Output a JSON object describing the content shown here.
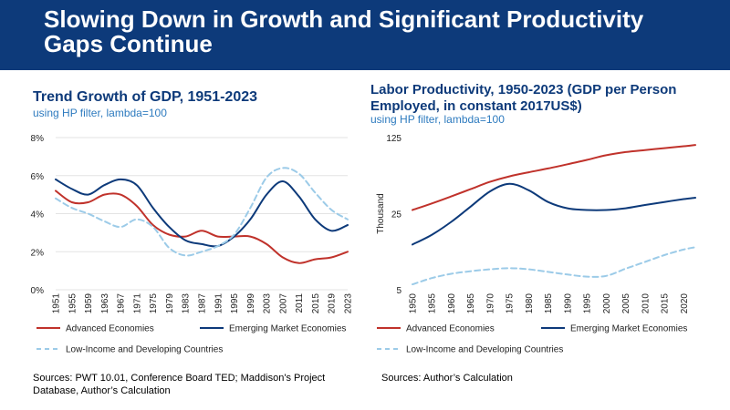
{
  "slide": {
    "title": "Slowing Down in Growth and Significant Productivity Gaps Continue",
    "banner_color": "#0d3a7a"
  },
  "left": {
    "title": "Trend Growth of GDP, 1951-2023",
    "subtitle": "using HP filter, lambda=100",
    "source": "Sources: PWT 10.01, Conference Board TED; Maddison's Project Database, Author’s Calculation"
  },
  "right": {
    "title": "Labor Productivity, 1950-2023  (GDP per Person Employed, in constant 2017US$)",
    "subtitle": "using HP filter, lambda=100",
    "source": "Sources: Author’s Calculation"
  },
  "chart_data": [
    {
      "type": "line",
      "title": "Trend Growth of GDP, 1951-2023",
      "ylabel": "",
      "y_format": "percent",
      "ylim": [
        0,
        8
      ],
      "y_ticks": [
        "0%",
        "2%",
        "4%",
        "6%",
        "8%"
      ],
      "y_tick_values": [
        0,
        2,
        4,
        6,
        8
      ],
      "x_ticks": [
        1951,
        1955,
        1959,
        1963,
        1967,
        1971,
        1975,
        1979,
        1983,
        1987,
        1991,
        1995,
        1999,
        2003,
        2007,
        2011,
        2015,
        2019,
        2023
      ],
      "grid": true,
      "legend": "bottom",
      "series": [
        {
          "name": "Advanced Economies",
          "color": "#c0322b",
          "dashed": false,
          "x": [
            1951,
            1955,
            1959,
            1963,
            1967,
            1971,
            1975,
            1979,
            1983,
            1987,
            1991,
            1995,
            1999,
            2003,
            2007,
            2011,
            2015,
            2019,
            2023
          ],
          "y": [
            5.2,
            4.6,
            4.6,
            5.0,
            5.0,
            4.4,
            3.4,
            2.9,
            2.8,
            3.1,
            2.8,
            2.8,
            2.8,
            2.4,
            1.7,
            1.4,
            1.6,
            1.7,
            2.0
          ]
        },
        {
          "name": "Emerging Market Economies",
          "color": "#0d3a7a",
          "dashed": false,
          "x": [
            1951,
            1955,
            1959,
            1963,
            1967,
            1971,
            1975,
            1979,
            1983,
            1987,
            1991,
            1995,
            1999,
            2003,
            2007,
            2011,
            2015,
            2019,
            2023
          ],
          "y": [
            5.8,
            5.3,
            5.0,
            5.5,
            5.8,
            5.5,
            4.3,
            3.3,
            2.6,
            2.4,
            2.3,
            2.8,
            3.7,
            5.0,
            5.7,
            4.9,
            3.7,
            3.1,
            3.4
          ]
        },
        {
          "name": "Low-Income and Developing Countries",
          "color": "#9ccbe8",
          "dashed": true,
          "x": [
            1951,
            1955,
            1959,
            1963,
            1967,
            1971,
            1975,
            1979,
            1983,
            1987,
            1991,
            1995,
            1999,
            2003,
            2007,
            2011,
            2015,
            2019,
            2023
          ],
          "y": [
            4.8,
            4.3,
            4.0,
            3.6,
            3.3,
            3.7,
            3.3,
            2.2,
            1.8,
            2.0,
            2.3,
            2.9,
            4.3,
            5.9,
            6.4,
            6.1,
            5.1,
            4.2,
            3.7
          ]
        }
      ]
    },
    {
      "type": "line",
      "title": "Labor Productivity, 1950-2023  (GDP per Person Employed, in constant 2017US$)",
      "ylabel": "Thousand",
      "y_scale": "log",
      "ylim": [
        5,
        125
      ],
      "y_tick_values": [
        5,
        25,
        125
      ],
      "y_ticks": [
        "5",
        "25",
        "125"
      ],
      "x_ticks": [
        1950,
        1955,
        1960,
        1965,
        1970,
        1975,
        1980,
        1985,
        1990,
        1995,
        2000,
        2005,
        2010,
        2015,
        2020
      ],
      "xlim": [
        1950,
        2023
      ],
      "grid": false,
      "legend": "bottom",
      "series": [
        {
          "name": "Advanced Economies",
          "color": "#c0322b",
          "dashed": false,
          "x": [
            1950,
            1955,
            1960,
            1965,
            1970,
            1975,
            1980,
            1985,
            1990,
            1995,
            2000,
            2005,
            2010,
            2015,
            2020,
            2023
          ],
          "y": [
            27,
            31,
            36,
            42,
            49,
            55,
            60,
            65,
            71,
            78,
            86,
            92,
            96,
            100,
            104,
            107
          ]
        },
        {
          "name": "Emerging Market Economies",
          "color": "#0d3a7a",
          "dashed": false,
          "x": [
            1950,
            1955,
            1960,
            1965,
            1970,
            1975,
            1980,
            1985,
            1990,
            1995,
            2000,
            2005,
            2010,
            2015,
            2020,
            2023
          ],
          "y": [
            13,
            16,
            21,
            29,
            40,
            47,
            41,
            32,
            28,
            27,
            27,
            28,
            30,
            32,
            34,
            35
          ]
        },
        {
          "name": "Low-Income and Developing Countries",
          "color": "#9ccbe8",
          "dashed": true,
          "x": [
            1950,
            1955,
            1960,
            1965,
            1970,
            1975,
            1980,
            1985,
            1990,
            1995,
            2000,
            2005,
            2010,
            2015,
            2020,
            2023
          ],
          "y": [
            5.6,
            6.4,
            7.0,
            7.4,
            7.7,
            7.9,
            7.7,
            7.3,
            6.9,
            6.6,
            6.7,
            7.8,
            9.0,
            10.4,
            11.7,
            12.3
          ]
        }
      ]
    }
  ]
}
